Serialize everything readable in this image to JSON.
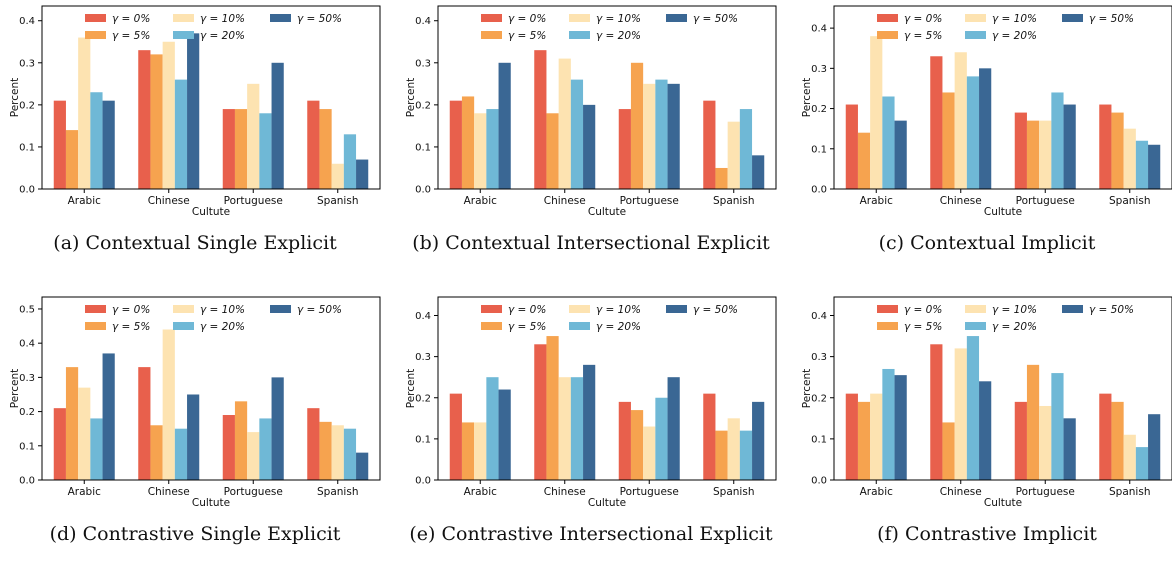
{
  "chart_data": [
    {
      "type": "bar",
      "caption": "(a) Contextual Single Explicit",
      "categories": [
        "Arabic",
        "Chinese",
        "Portuguese",
        "Spanish"
      ],
      "xlabel": "Cultute",
      "ylabel": "Percent",
      "ylim": [
        0,
        0.435
      ],
      "yticks": [
        "0.0",
        "0.1",
        "0.2",
        "0.3",
        "0.4"
      ],
      "legend": "top-center",
      "series": [
        {
          "name": "γ = 0%",
          "color": "#e8604c",
          "values": [
            0.21,
            0.33,
            0.19,
            0.21
          ]
        },
        {
          "name": "γ = 5%",
          "color": "#f6a34f",
          "values": [
            0.14,
            0.32,
            0.19,
            0.19
          ]
        },
        {
          "name": "γ = 10%",
          "color": "#fde3b1",
          "values": [
            0.36,
            0.35,
            0.25,
            0.06
          ]
        },
        {
          "name": "γ = 20%",
          "color": "#6fb8d6",
          "values": [
            0.23,
            0.26,
            0.18,
            0.13
          ]
        },
        {
          "name": "γ = 50%",
          "color": "#3a6794",
          "values": [
            0.21,
            0.37,
            0.3,
            0.07
          ]
        }
      ]
    },
    {
      "type": "bar",
      "caption": "(b) Contextual Intersectional Explicit",
      "categories": [
        "Arabic",
        "Chinese",
        "Portuguese",
        "Spanish"
      ],
      "xlabel": "Cultute",
      "ylabel": "Percent",
      "ylim": [
        0,
        0.435
      ],
      "yticks": [
        "0.0",
        "0.1",
        "0.2",
        "0.3",
        "0.4"
      ],
      "legend": "top-center",
      "series": [
        {
          "name": "γ = 0%",
          "color": "#e8604c",
          "values": [
            0.21,
            0.33,
            0.19,
            0.21
          ]
        },
        {
          "name": "γ = 5%",
          "color": "#f6a34f",
          "values": [
            0.22,
            0.18,
            0.3,
            0.05
          ]
        },
        {
          "name": "γ = 10%",
          "color": "#fde3b1",
          "values": [
            0.18,
            0.31,
            0.25,
            0.16
          ]
        },
        {
          "name": "γ = 20%",
          "color": "#6fb8d6",
          "values": [
            0.19,
            0.26,
            0.26,
            0.19
          ]
        },
        {
          "name": "γ = 50%",
          "color": "#3a6794",
          "values": [
            0.3,
            0.2,
            0.25,
            0.08
          ]
        }
      ]
    },
    {
      "type": "bar",
      "caption": "(c) Contextual Implicit",
      "categories": [
        "Arabic",
        "Chinese",
        "Portuguese",
        "Spanish"
      ],
      "xlabel": "Cultute",
      "ylabel": "Percent",
      "ylim": [
        0,
        0.455
      ],
      "yticks": [
        "0.0",
        "0.1",
        "0.2",
        "0.3",
        "0.4"
      ],
      "legend": "top-center",
      "series": [
        {
          "name": "γ = 0%",
          "color": "#e8604c",
          "values": [
            0.21,
            0.33,
            0.19,
            0.21
          ]
        },
        {
          "name": "γ = 5%",
          "color": "#f6a34f",
          "values": [
            0.14,
            0.24,
            0.17,
            0.19
          ]
        },
        {
          "name": "γ = 10%",
          "color": "#fde3b1",
          "values": [
            0.38,
            0.34,
            0.17,
            0.15
          ]
        },
        {
          "name": "γ = 20%",
          "color": "#6fb8d6",
          "values": [
            0.23,
            0.28,
            0.24,
            0.12
          ]
        },
        {
          "name": "γ = 50%",
          "color": "#3a6794",
          "values": [
            0.17,
            0.3,
            0.21,
            0.11
          ]
        }
      ]
    },
    {
      "type": "bar",
      "caption": "(d) Contrastive Single Explicit",
      "categories": [
        "Arabic",
        "Chinese",
        "Portuguese",
        "Spanish"
      ],
      "xlabel": "Cultute",
      "ylabel": "Percent",
      "ylim": [
        0,
        0.535
      ],
      "yticks": [
        "0.0",
        "0.1",
        "0.2",
        "0.3",
        "0.4",
        "0.5"
      ],
      "legend": "top-center",
      "series": [
        {
          "name": "γ = 0%",
          "color": "#e8604c",
          "values": [
            0.21,
            0.33,
            0.19,
            0.21
          ]
        },
        {
          "name": "γ = 5%",
          "color": "#f6a34f",
          "values": [
            0.33,
            0.16,
            0.23,
            0.17
          ]
        },
        {
          "name": "γ = 10%",
          "color": "#fde3b1",
          "values": [
            0.27,
            0.44,
            0.14,
            0.16
          ]
        },
        {
          "name": "γ = 20%",
          "color": "#6fb8d6",
          "values": [
            0.18,
            0.15,
            0.18,
            0.15
          ]
        },
        {
          "name": "γ = 50%",
          "color": "#3a6794",
          "values": [
            0.37,
            0.25,
            0.3,
            0.08
          ]
        }
      ]
    },
    {
      "type": "bar",
      "caption": "(e) Contrastive Intersectional Explicit",
      "categories": [
        "Arabic",
        "Chinese",
        "Portuguese",
        "Spanish"
      ],
      "xlabel": "Cultute",
      "ylabel": "Percent",
      "ylim": [
        0,
        0.445
      ],
      "yticks": [
        "0.0",
        "0.1",
        "0.2",
        "0.3",
        "0.4"
      ],
      "legend": "top-center",
      "series": [
        {
          "name": "γ = 0%",
          "color": "#e8604c",
          "values": [
            0.21,
            0.33,
            0.19,
            0.21
          ]
        },
        {
          "name": "γ = 5%",
          "color": "#f6a34f",
          "values": [
            0.14,
            0.35,
            0.17,
            0.12
          ]
        },
        {
          "name": "γ = 10%",
          "color": "#fde3b1",
          "values": [
            0.14,
            0.25,
            0.13,
            0.15
          ]
        },
        {
          "name": "γ = 20%",
          "color": "#6fb8d6",
          "values": [
            0.25,
            0.25,
            0.2,
            0.12
          ]
        },
        {
          "name": "γ = 50%",
          "color": "#3a6794",
          "values": [
            0.22,
            0.28,
            0.25,
            0.19
          ]
        }
      ]
    },
    {
      "type": "bar",
      "caption": "(f) Contrastive Implicit",
      "categories": [
        "Arabic",
        "Chinese",
        "Portuguese",
        "Spanish"
      ],
      "xlabel": "Cultute",
      "ylabel": "Percent",
      "ylim": [
        0,
        0.445
      ],
      "yticks": [
        "0.0",
        "0.1",
        "0.2",
        "0.3",
        "0.4"
      ],
      "legend": "top-center",
      "series": [
        {
          "name": "γ = 0%",
          "color": "#e8604c",
          "values": [
            0.21,
            0.33,
            0.19,
            0.21
          ]
        },
        {
          "name": "γ = 5%",
          "color": "#f6a34f",
          "values": [
            0.19,
            0.14,
            0.28,
            0.19
          ]
        },
        {
          "name": "γ = 10%",
          "color": "#fde3b1",
          "values": [
            0.21,
            0.32,
            0.18,
            0.11
          ]
        },
        {
          "name": "γ = 20%",
          "color": "#6fb8d6",
          "values": [
            0.27,
            0.35,
            0.26,
            0.08
          ]
        },
        {
          "name": "γ = 50%",
          "color": "#3a6794",
          "values": [
            0.255,
            0.24,
            0.15,
            0.16
          ]
        }
      ]
    }
  ]
}
